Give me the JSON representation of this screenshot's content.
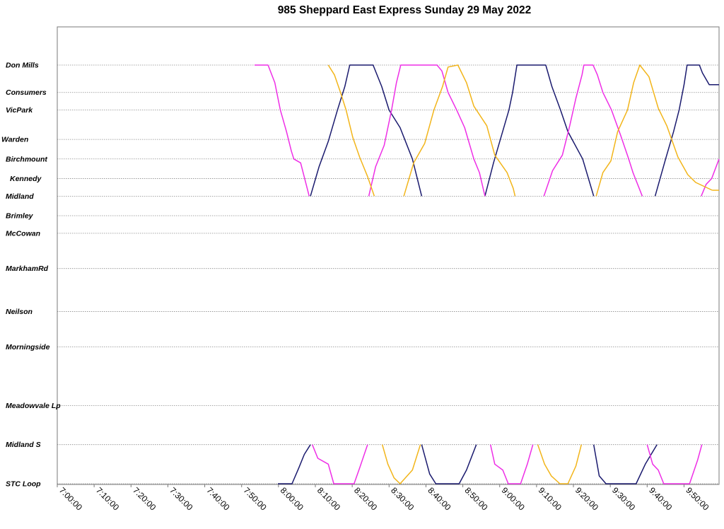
{
  "chart_data": {
    "type": "line",
    "title": "985 Sheppard East Express Sunday 29 May 2022",
    "xlabel": "",
    "ylabel": "",
    "grid": true,
    "stops": [
      {
        "name": "Don Mills",
        "pos": 0.0
      },
      {
        "name": "Consumers",
        "pos": 0.7
      },
      {
        "name": "VicPark",
        "pos": 1.15
      },
      {
        "name": "Warden",
        "pos": 1.9
      },
      {
        "name": "Birchmount",
        "pos": 2.4
      },
      {
        "name": "Kennedy",
        "pos": 2.9
      },
      {
        "name": "Midland",
        "pos": 3.35
      },
      {
        "name": "Brimley",
        "pos": 3.85
      },
      {
        "name": "McCowan",
        "pos": 4.3
      },
      {
        "name": "MarkhamRd",
        "pos": 5.2
      },
      {
        "name": "Neilson",
        "pos": 6.3
      },
      {
        "name": "Morningside",
        "pos": 7.2
      },
      {
        "name": "Meadowvale Lp",
        "pos": 8.7
      },
      {
        "name": "Midland S",
        "pos": 9.7
      },
      {
        "name": "STC Loop",
        "pos": 10.7
      }
    ],
    "x_ticks": [
      "7:00:00",
      "7:10:00",
      "7:20:00",
      "7:30:00",
      "7:40:00",
      "7:50:00",
      "8:00:00",
      "8:10:00",
      "8:20:00",
      "8:30:00",
      "8:40:00",
      "8:50:00",
      "9:00:00",
      "9:10:00",
      "9:20:00",
      "9:30:00",
      "9:40:00",
      "9:50:00"
    ],
    "xlim": [
      "7:00:00",
      "9:59:30"
    ],
    "series": [
      {
        "color": "#1a1a6e",
        "trips": [
          [
            [
              "7:59:50",
              10.7
            ],
            [
              "8:03:40",
              10.7
            ],
            [
              "8:05:30",
              10.3
            ],
            [
              "8:07:00",
              9.95
            ],
            [
              "8:08:40",
              9.7
            ]
          ],
          [
            [
              "8:08:40",
              3.35
            ],
            [
              "8:11:00",
              2.6
            ],
            [
              "8:13:30",
              1.95
            ],
            [
              "8:16:00",
              1.15
            ],
            [
              "8:18:00",
              0.55
            ],
            [
              "8:19:20",
              0.0
            ],
            [
              "8:25:40",
              0.0
            ],
            [
              "8:28:00",
              0.55
            ],
            [
              "8:30:00",
              1.15
            ],
            [
              "8:33:00",
              1.6
            ],
            [
              "8:36:20",
              2.4
            ],
            [
              "8:38:50",
              3.35
            ]
          ],
          [
            [
              "8:38:50",
              9.7
            ],
            [
              "8:41:00",
              10.45
            ],
            [
              "8:42:40",
              10.7
            ],
            [
              "8:49:00",
              10.7
            ],
            [
              "8:51:00",
              10.35
            ],
            [
              "8:53:40",
              9.7
            ]
          ],
          [
            [
              "8:56:00",
              3.35
            ],
            [
              "8:58:20",
              2.5
            ],
            [
              "9:00:30",
              1.8
            ],
            [
              "9:02:30",
              1.15
            ],
            [
              "9:03:30",
              0.7
            ],
            [
              "9:04:40",
              0.0
            ],
            [
              "9:12:30",
              0.0
            ],
            [
              "9:14:10",
              0.55
            ],
            [
              "9:16:30",
              1.15
            ],
            [
              "9:18:30",
              1.7
            ],
            [
              "9:22:30",
              2.4
            ],
            [
              "9:25:30",
              3.35
            ]
          ],
          [
            [
              "9:25:30",
              9.7
            ],
            [
              "9:27:00",
              10.5
            ],
            [
              "9:28:50",
              10.7
            ],
            [
              "9:37:00",
              10.7
            ],
            [
              "9:39:30",
              10.2
            ],
            [
              "9:42:40",
              9.7
            ]
          ],
          [
            [
              "9:42:10",
              3.35
            ],
            [
              "9:45:00",
              2.4
            ],
            [
              "9:47:10",
              1.7
            ],
            [
              "9:48:40",
              1.15
            ],
            [
              "9:50:00",
              0.5
            ],
            [
              "9:50:50",
              0.0
            ],
            [
              "9:54:10",
              0.0
            ],
            [
              "9:55:00",
              0.2
            ],
            [
              "9:56:50",
              0.5
            ],
            [
              "9:59:30",
              0.5
            ]
          ]
        ]
      },
      {
        "color": "#ee2ee6",
        "trips": [
          [
            [
              "7:53:30",
              0.0
            ],
            [
              "7:57:10",
              0.0
            ],
            [
              "7:59:00",
              0.45
            ],
            [
              "8:00:30",
              1.15
            ],
            [
              "8:02:10",
              1.7
            ],
            [
              "8:03:30",
              2.2
            ],
            [
              "8:04:10",
              2.4
            ],
            [
              "8:06:00",
              2.5
            ],
            [
              "8:08:20",
              3.35
            ]
          ],
          [
            [
              "8:09:10",
              9.7
            ],
            [
              "8:10:40",
              10.05
            ],
            [
              "8:13:30",
              10.2
            ],
            [
              "8:15:00",
              10.7
            ],
            [
              "8:20:30",
              10.7
            ],
            [
              "8:22:00",
              10.3
            ],
            [
              "8:24:10",
              9.7
            ]
          ],
          [
            [
              "8:24:30",
              3.35
            ],
            [
              "8:26:20",
              2.6
            ],
            [
              "8:28:40",
              2.05
            ],
            [
              "8:30:40",
              1.15
            ],
            [
              "8:32:00",
              0.45
            ],
            [
              "8:33:10",
              0.0
            ],
            [
              "8:43:00",
              0.0
            ],
            [
              "8:44:20",
              0.15
            ],
            [
              "8:46:00",
              0.7
            ],
            [
              "8:48:20",
              1.15
            ],
            [
              "8:50:30",
              1.6
            ],
            [
              "8:53:00",
              2.4
            ],
            [
              "8:54:30",
              2.75
            ],
            [
              "8:56:00",
              3.35
            ]
          ],
          [
            [
              "8:57:30",
              9.7
            ],
            [
              "8:58:40",
              10.2
            ],
            [
              "9:00:50",
              10.35
            ],
            [
              "9:02:20",
              10.7
            ],
            [
              "9:05:40",
              10.7
            ],
            [
              "9:07:30",
              10.2
            ],
            [
              "9:09:00",
              9.7
            ]
          ],
          [
            [
              "9:12:00",
              3.35
            ],
            [
              "9:14:20",
              2.7
            ],
            [
              "9:17:00",
              2.3
            ],
            [
              "9:19:00",
              1.55
            ],
            [
              "9:20:40",
              0.85
            ],
            [
              "9:22:20",
              0.25
            ],
            [
              "9:22:50",
              0.0
            ],
            [
              "9:25:20",
              0.0
            ],
            [
              "9:26:30",
              0.25
            ],
            [
              "9:28:00",
              0.7
            ],
            [
              "9:30:20",
              1.15
            ],
            [
              "9:32:50",
              1.8
            ],
            [
              "9:35:00",
              2.4
            ],
            [
              "9:36:10",
              2.75
            ],
            [
              "9:38:40",
              3.35
            ]
          ],
          [
            [
              "9:40:00",
              9.7
            ],
            [
              "9:41:30",
              10.2
            ],
            [
              "9:43:00",
              10.35
            ],
            [
              "9:44:30",
              10.7
            ],
            [
              "9:51:30",
              10.7
            ],
            [
              "9:53:40",
              10.1
            ],
            [
              "9:54:50",
              9.7
            ]
          ],
          [
            [
              "9:54:40",
              3.35
            ],
            [
              "9:56:00",
              3.05
            ],
            [
              "9:57:30",
              2.9
            ],
            [
              "9:59:30",
              2.4
            ]
          ]
        ]
      },
      {
        "color": "#f2b51a",
        "trips": [
          [
            [
              "8:13:30",
              0.0
            ],
            [
              "8:15:10",
              0.25
            ],
            [
              "8:16:50",
              0.7
            ],
            [
              "8:18:20",
              1.15
            ],
            [
              "8:20:10",
              1.85
            ],
            [
              "8:22:00",
              2.35
            ],
            [
              "8:24:10",
              2.85
            ],
            [
              "8:26:00",
              3.35
            ]
          ],
          [
            [
              "8:28:10",
              9.7
            ],
            [
              "8:29:40",
              10.2
            ],
            [
              "8:31:20",
              10.55
            ],
            [
              "8:33:00",
              10.7
            ],
            [
              "8:36:20",
              10.35
            ],
            [
              "8:38:30",
              9.7
            ]
          ],
          [
            [
              "8:34:00",
              3.35
            ],
            [
              "8:36:40",
              2.5
            ],
            [
              "8:39:40",
              2.0
            ],
            [
              "8:42:10",
              1.15
            ],
            [
              "8:44:30",
              0.55
            ],
            [
              "8:46:00",
              0.05
            ],
            [
              "8:48:40",
              0.0
            ],
            [
              "8:51:00",
              0.45
            ],
            [
              "8:53:00",
              1.05
            ],
            [
              "8:56:30",
              1.55
            ],
            [
              "8:58:40",
              2.3
            ],
            [
              "9:02:00",
              2.75
            ],
            [
              "9:03:40",
              3.15
            ],
            [
              "9:04:10",
              3.35
            ]
          ],
          [
            [
              "9:10:20",
              9.7
            ],
            [
              "9:12:10",
              10.2
            ],
            [
              "9:14:00",
              10.5
            ],
            [
              "9:16:20",
              10.7
            ],
            [
              "9:18:30",
              10.7
            ],
            [
              "9:20:40",
              10.25
            ],
            [
              "9:22:10",
              9.7
            ]
          ],
          [
            [
              "9:26:10",
              3.35
            ],
            [
              "9:28:00",
              2.75
            ],
            [
              "9:30:10",
              2.45
            ],
            [
              "9:32:00",
              1.7
            ],
            [
              "9:34:40",
              1.15
            ],
            [
              "9:36:20",
              0.45
            ],
            [
              "9:38:00",
              0.0
            ],
            [
              "9:40:30",
              0.3
            ],
            [
              "9:43:00",
              1.1
            ],
            [
              "9:45:20",
              1.55
            ],
            [
              "9:48:20",
              2.35
            ],
            [
              "9:51:00",
              2.8
            ],
            [
              "9:53:10",
              3.0
            ],
            [
              "9:57:40",
              3.2
            ]
          ],
          [
            [
              "9:57:40",
              3.2
            ],
            [
              "9:59:30",
              3.2
            ]
          ]
        ]
      }
    ]
  }
}
